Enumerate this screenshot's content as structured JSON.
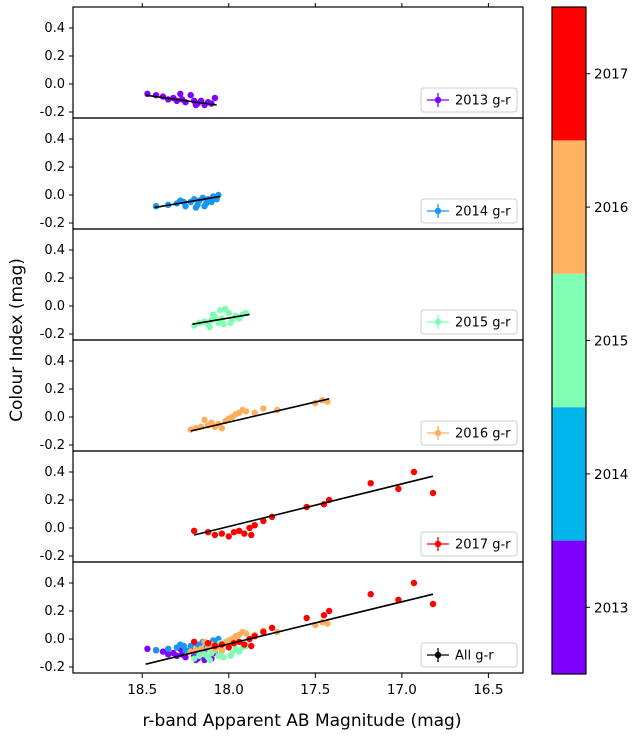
{
  "chart_data": {
    "type": "scatter",
    "xlabel": "r-band Apparent AB Magnitude (mag)",
    "ylabel": "Colour Index (mag)",
    "xlim": [
      18.9,
      16.3
    ],
    "ylim": [
      -0.3,
      0.5
    ],
    "x_ticks": [
      18.5,
      18.0,
      17.5,
      17.0,
      16.5
    ],
    "x_tick_labels": [
      "18.5",
      "18.0",
      "17.5",
      "17.0",
      "16.5"
    ],
    "y_ticks": [
      -0.2,
      0.0,
      0.2,
      0.4
    ],
    "y_tick_labels": [
      "-0.2",
      "0.0",
      "0.2",
      "0.4"
    ],
    "legend_position": "bottom-right",
    "year_colors": {
      "2013": "#8000ff",
      "2014": "#1996f3",
      "2015": "#80ffb4",
      "2016": "#ffaf5c",
      "2017": "#ff0000"
    },
    "colorbar": {
      "labels": [
        "2013",
        "2014",
        "2015",
        "2016",
        "2017"
      ],
      "colors": [
        "#8000ff",
        "#00b5eb",
        "#80ffb4",
        "#ffb360",
        "#ff0000"
      ]
    },
    "panels": [
      {
        "legend": "2013 g-r",
        "color": "#8000ff",
        "fit": {
          "x": [
            18.48,
            18.07
          ],
          "y": [
            -0.08,
            -0.15
          ]
        },
        "series": [
          {
            "year": "2013",
            "x": [
              18.47,
              18.42,
              18.38,
              18.35,
              18.32,
              18.3,
              18.27,
              18.25,
              18.22,
              18.2,
              18.18,
              18.16,
              18.14,
              18.12,
              18.1,
              18.08,
              18.28,
              18.19
            ],
            "y": [
              -0.07,
              -0.08,
              -0.09,
              -0.11,
              -0.1,
              -0.12,
              -0.11,
              -0.13,
              -0.08,
              -0.12,
              -0.14,
              -0.12,
              -0.15,
              -0.13,
              -0.14,
              -0.1,
              -0.07,
              -0.15
            ]
          }
        ]
      },
      {
        "legend": "2014 g-r",
        "color": "#1996f3",
        "fit": {
          "x": [
            18.43,
            18.05
          ],
          "y": [
            -0.09,
            -0.01
          ]
        },
        "series": [
          {
            "year": "2014",
            "x": [
              18.42,
              18.35,
              18.3,
              18.28,
              18.25,
              18.22,
              18.2,
              18.18,
              18.17,
              18.15,
              18.13,
              18.12,
              18.1,
              18.09,
              18.08,
              18.07,
              18.06,
              18.26,
              18.19,
              18.14
            ],
            "y": [
              -0.08,
              -0.07,
              -0.06,
              -0.04,
              -0.08,
              -0.05,
              -0.03,
              -0.07,
              -0.04,
              -0.02,
              -0.06,
              -0.03,
              -0.05,
              -0.01,
              -0.02,
              -0.03,
              0.0,
              -0.05,
              -0.09,
              -0.08
            ]
          }
        ]
      },
      {
        "legend": "2015 g-r",
        "color": "#80ffb4",
        "fit": {
          "x": [
            18.21,
            17.88
          ],
          "y": [
            -0.13,
            -0.06
          ]
        },
        "series": [
          {
            "year": "2015",
            "x": [
              18.2,
              18.17,
              18.14,
              18.12,
              18.1,
              18.08,
              18.06,
              18.04,
              18.02,
              18.0,
              17.98,
              17.96,
              17.94,
              17.92,
              17.9,
              18.05,
              18.03,
              18.09,
              17.99,
              18.11
            ],
            "y": [
              -0.14,
              -0.12,
              -0.11,
              -0.13,
              -0.1,
              -0.08,
              -0.12,
              -0.09,
              -0.02,
              -0.05,
              -0.1,
              -0.07,
              -0.09,
              -0.06,
              -0.05,
              -0.03,
              -0.13,
              -0.06,
              -0.12,
              -0.15
            ]
          }
        ]
      },
      {
        "legend": "2016 g-r",
        "color": "#ffaf5c",
        "fit": {
          "x": [
            18.22,
            17.42
          ],
          "y": [
            -0.1,
            0.13
          ]
        },
        "series": [
          {
            "year": "2016",
            "x": [
              18.22,
              18.19,
              18.16,
              18.12,
              18.1,
              18.08,
              18.06,
              18.04,
              18.02,
              18.0,
              17.98,
              17.96,
              17.94,
              17.92,
              17.9,
              17.85,
              17.8,
              17.72,
              17.5,
              17.46,
              17.43,
              18.14
            ],
            "y": [
              -0.09,
              -0.08,
              -0.07,
              -0.06,
              -0.04,
              -0.07,
              -0.05,
              -0.08,
              -0.03,
              -0.01,
              0.0,
              0.02,
              0.03,
              0.05,
              0.04,
              0.03,
              0.06,
              0.05,
              0.1,
              0.12,
              0.11,
              -0.02
            ]
          }
        ]
      },
      {
        "legend": "2017 g-r",
        "color": "#ff0000",
        "fit": {
          "x": [
            18.2,
            16.82
          ],
          "y": [
            -0.05,
            0.37
          ]
        },
        "series": [
          {
            "year": "2017",
            "x": [
              18.2,
              18.12,
              18.08,
              18.04,
              18.0,
              17.97,
              17.94,
              17.91,
              17.88,
              17.85,
              17.8,
              17.75,
              17.55,
              17.45,
              17.42,
              17.18,
              17.02,
              16.93,
              16.82,
              17.87
            ],
            "y": [
              -0.02,
              -0.03,
              -0.05,
              -0.04,
              -0.06,
              -0.03,
              -0.02,
              -0.04,
              0.0,
              0.02,
              0.05,
              0.08,
              0.15,
              0.17,
              0.2,
              0.32,
              0.28,
              0.4,
              0.25,
              -0.05
            ]
          }
        ]
      },
      {
        "legend": "All g-r",
        "color": "#000000",
        "fit": {
          "x": [
            18.48,
            16.82
          ],
          "y": [
            -0.18,
            0.32
          ]
        },
        "series": [
          {
            "year": "2013",
            "x": [
              18.47,
              18.42,
              18.38,
              18.35,
              18.32,
              18.3,
              18.27,
              18.25,
              18.22,
              18.2,
              18.18,
              18.16,
              18.14,
              18.12,
              18.1,
              18.08,
              18.28,
              18.19
            ],
            "y": [
              -0.07,
              -0.08,
              -0.09,
              -0.11,
              -0.1,
              -0.12,
              -0.11,
              -0.13,
              -0.08,
              -0.12,
              -0.14,
              -0.12,
              -0.15,
              -0.13,
              -0.14,
              -0.1,
              -0.07,
              -0.15
            ]
          },
          {
            "year": "2014",
            "x": [
              18.42,
              18.35,
              18.3,
              18.28,
              18.25,
              18.22,
              18.2,
              18.18,
              18.17,
              18.15,
              18.13,
              18.12,
              18.1,
              18.09,
              18.08,
              18.07,
              18.06,
              18.26,
              18.19,
              18.14
            ],
            "y": [
              -0.08,
              -0.07,
              -0.06,
              -0.04,
              -0.08,
              -0.05,
              -0.03,
              -0.07,
              -0.04,
              -0.02,
              -0.06,
              -0.03,
              -0.05,
              -0.01,
              -0.02,
              -0.03,
              0.0,
              -0.05,
              -0.09,
              -0.08
            ]
          },
          {
            "year": "2015",
            "x": [
              18.2,
              18.17,
              18.14,
              18.12,
              18.1,
              18.08,
              18.06,
              18.04,
              18.02,
              18.0,
              17.98,
              17.96,
              17.94,
              17.92,
              17.9,
              18.05,
              18.03,
              18.09,
              17.99,
              18.11
            ],
            "y": [
              -0.14,
              -0.12,
              -0.11,
              -0.13,
              -0.1,
              -0.08,
              -0.12,
              -0.09,
              -0.02,
              -0.05,
              -0.1,
              -0.07,
              -0.09,
              -0.06,
              -0.05,
              -0.03,
              -0.13,
              -0.06,
              -0.12,
              -0.15
            ]
          },
          {
            "year": "2016",
            "x": [
              18.22,
              18.19,
              18.16,
              18.12,
              18.1,
              18.08,
              18.06,
              18.04,
              18.02,
              18.0,
              17.98,
              17.96,
              17.94,
              17.92,
              17.9,
              17.85,
              17.8,
              17.72,
              17.5,
              17.46,
              17.43,
              18.14
            ],
            "y": [
              -0.09,
              -0.08,
              -0.07,
              -0.06,
              -0.04,
              -0.07,
              -0.05,
              -0.08,
              -0.03,
              -0.01,
              0.0,
              0.02,
              0.03,
              0.05,
              0.04,
              0.03,
              0.06,
              0.05,
              0.1,
              0.12,
              0.11,
              -0.02
            ]
          },
          {
            "year": "2017",
            "x": [
              18.2,
              18.12,
              18.08,
              18.04,
              18.0,
              17.97,
              17.94,
              17.91,
              17.88,
              17.85,
              17.8,
              17.75,
              17.55,
              17.45,
              17.42,
              17.18,
              17.02,
              16.93,
              16.82,
              17.87
            ],
            "y": [
              -0.02,
              -0.03,
              -0.05,
              -0.04,
              -0.06,
              -0.03,
              -0.02,
              -0.04,
              0.0,
              0.02,
              0.05,
              0.08,
              0.15,
              0.17,
              0.2,
              0.32,
              0.28,
              0.4,
              0.25,
              -0.05
            ]
          }
        ]
      }
    ]
  }
}
